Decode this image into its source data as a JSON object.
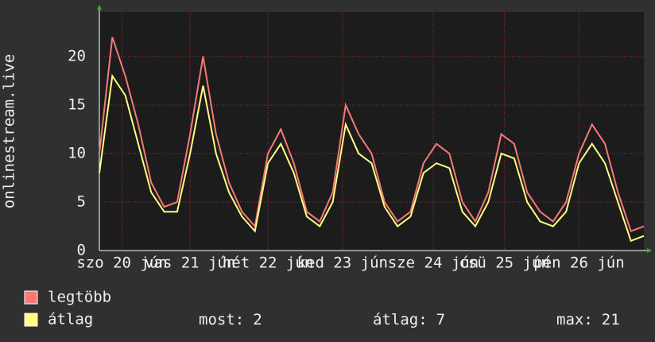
{
  "chart_data": {
    "type": "line",
    "y_label": "onlinestream.live",
    "xlim": [
      0,
      168
    ],
    "xticks": [
      {
        "value": 7,
        "label": "szo 20 jún"
      },
      {
        "value": 28,
        "label": "vas 21 jún"
      },
      {
        "value": 52,
        "label": "hét 22 jún"
      },
      {
        "value": 75,
        "label": "ked 23 jún"
      },
      {
        "value": 103,
        "label": "sze 24 jún"
      },
      {
        "value": 125,
        "label": "csü 25 jún"
      },
      {
        "value": 148,
        "label": "pén 26 jún"
      }
    ],
    "ylim": [
      0,
      24.6
    ],
    "yticks": [
      0,
      5,
      10,
      15,
      20
    ],
    "grid": true,
    "x": [
      0,
      4,
      8,
      12,
      16,
      20,
      24,
      28,
      32,
      36,
      40,
      44,
      48,
      52,
      56,
      60,
      64,
      68,
      72,
      76,
      80,
      84,
      88,
      92,
      96,
      100,
      104,
      108,
      112,
      116,
      120,
      124,
      128,
      132,
      136,
      140,
      144,
      148,
      152,
      156,
      160,
      164,
      168
    ],
    "series": [
      {
        "name": "legtöbb",
        "color": "#f87878",
        "values": [
          10,
          22,
          18,
          13,
          7,
          4.5,
          5,
          12,
          20,
          12,
          7,
          4,
          2.5,
          10,
          12.5,
          9,
          4,
          3,
          6,
          15,
          12,
          10,
          5,
          3,
          4,
          9,
          11,
          10,
          5,
          3,
          6,
          12,
          11,
          6,
          4,
          3,
          5,
          10,
          13,
          11,
          6,
          2,
          2.5
        ]
      },
      {
        "name": "átlag",
        "color": "#ffff80",
        "values": [
          8,
          18,
          16,
          11,
          6,
          4,
          4,
          10,
          17,
          10,
          6,
          3.5,
          2,
          9,
          11,
          8,
          3.5,
          2.5,
          5,
          13,
          10,
          9,
          4.5,
          2.5,
          3.5,
          8,
          9,
          8.5,
          4,
          2.5,
          5,
          10,
          9.5,
          5,
          3,
          2.5,
          4,
          9,
          11,
          9,
          5,
          1,
          1.5
        ]
      }
    ],
    "stats": [
      {
        "label": "most:",
        "value": 2
      },
      {
        "label": "átlag:",
        "value": 7
      },
      {
        "label": "max:",
        "value": 21
      }
    ]
  }
}
